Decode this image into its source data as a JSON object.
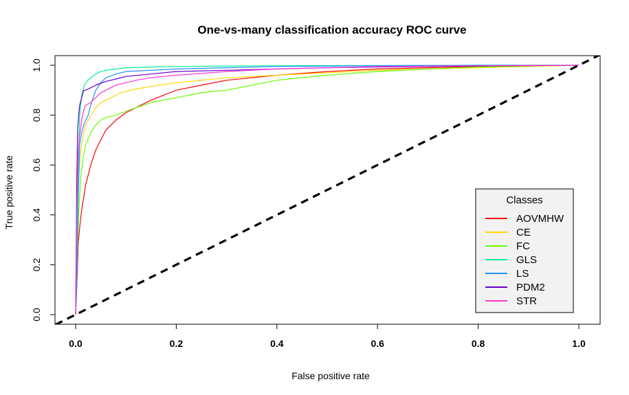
{
  "chart_data": {
    "type": "line",
    "title": "One-vs-many classification accuracy ROC curve",
    "xlabel": "False positive rate",
    "ylabel": "True positive rate",
    "xlim": [
      0,
      1
    ],
    "ylim": [
      0,
      1
    ],
    "x_ticks": [
      "0.0",
      "0.2",
      "0.4",
      "0.6",
      "0.8",
      "1.0"
    ],
    "y_ticks": [
      "0.0",
      "0.2",
      "0.4",
      "0.6",
      "0.8",
      "1.0"
    ],
    "legend": {
      "title": "Classes",
      "position": "bottom-right"
    },
    "diagonal": {
      "name": "random-classifier",
      "color": "#000000",
      "style": "dashed",
      "x": [
        0,
        1
      ],
      "y": [
        0,
        1
      ]
    },
    "series": [
      {
        "name": "AOVMHW",
        "color": "#ff0000",
        "x": [
          0,
          0.003,
          0.005,
          0.008,
          0.012,
          0.02,
          0.03,
          0.04,
          0.05,
          0.06,
          0.08,
          0.1,
          0.12,
          0.15,
          0.2,
          0.25,
          0.3,
          0.35,
          0.4,
          0.5,
          0.6,
          0.7,
          0.8,
          0.9,
          1.0
        ],
        "y": [
          0,
          0.15,
          0.28,
          0.35,
          0.42,
          0.52,
          0.6,
          0.66,
          0.7,
          0.74,
          0.78,
          0.81,
          0.83,
          0.86,
          0.9,
          0.92,
          0.94,
          0.95,
          0.96,
          0.975,
          0.985,
          0.99,
          0.995,
          0.998,
          1.0
        ]
      },
      {
        "name": "CE",
        "color": "#ffd700",
        "x": [
          0,
          0.003,
          0.006,
          0.01,
          0.015,
          0.02,
          0.03,
          0.04,
          0.05,
          0.07,
          0.09,
          0.12,
          0.15,
          0.2,
          0.25,
          0.3,
          0.4,
          0.5,
          0.6,
          0.8,
          1.0
        ],
        "y": [
          0,
          0.35,
          0.55,
          0.65,
          0.72,
          0.76,
          0.8,
          0.83,
          0.85,
          0.87,
          0.89,
          0.905,
          0.915,
          0.93,
          0.94,
          0.95,
          0.96,
          0.97,
          0.98,
          0.99,
          1.0
        ]
      },
      {
        "name": "FC",
        "color": "#66ff00",
        "x": [
          0,
          0.003,
          0.006,
          0.01,
          0.015,
          0.02,
          0.03,
          0.04,
          0.05,
          0.06,
          0.08,
          0.1,
          0.12,
          0.15,
          0.2,
          0.25,
          0.3,
          0.35,
          0.4,
          0.5,
          0.6,
          0.7,
          0.8,
          0.9,
          1.0
        ],
        "y": [
          0,
          0.2,
          0.4,
          0.55,
          0.63,
          0.68,
          0.73,
          0.76,
          0.78,
          0.79,
          0.8,
          0.815,
          0.83,
          0.85,
          0.87,
          0.89,
          0.9,
          0.92,
          0.94,
          0.96,
          0.975,
          0.985,
          0.993,
          0.998,
          1.0
        ]
      },
      {
        "name": "GLS",
        "color": "#00ee99",
        "x": [
          0,
          0.002,
          0.005,
          0.008,
          0.012,
          0.016,
          0.02,
          0.03,
          0.04,
          0.05,
          0.06,
          0.08,
          0.1,
          0.15,
          0.2,
          0.3,
          0.4,
          0.6,
          0.8,
          1.0
        ],
        "y": [
          0,
          0.3,
          0.6,
          0.8,
          0.88,
          0.91,
          0.93,
          0.95,
          0.965,
          0.975,
          0.98,
          0.985,
          0.99,
          0.993,
          0.995,
          0.997,
          0.998,
          0.999,
          1.0,
          1.0
        ]
      },
      {
        "name": "LS",
        "color": "#1e90ff",
        "x": [
          0,
          0.002,
          0.005,
          0.008,
          0.012,
          0.016,
          0.02,
          0.025,
          0.03,
          0.035,
          0.04,
          0.05,
          0.06,
          0.08,
          0.1,
          0.15,
          0.2,
          0.3,
          0.4,
          0.6,
          0.8,
          1.0
        ],
        "y": [
          0,
          0.1,
          0.45,
          0.68,
          0.73,
          0.76,
          0.78,
          0.8,
          0.84,
          0.87,
          0.9,
          0.93,
          0.95,
          0.965,
          0.975,
          0.98,
          0.985,
          0.99,
          0.995,
          0.998,
          1.0,
          1.0
        ]
      },
      {
        "name": "PDM2",
        "color": "#6600cc",
        "x": [
          0,
          0.002,
          0.004,
          0.006,
          0.008,
          0.012,
          0.016,
          0.02,
          0.03,
          0.04,
          0.06,
          0.08,
          0.1,
          0.15,
          0.2,
          0.3,
          0.4,
          0.5,
          0.6,
          0.8,
          1.0
        ],
        "y": [
          0,
          0.5,
          0.74,
          0.8,
          0.84,
          0.87,
          0.9,
          0.9,
          0.91,
          0.92,
          0.935,
          0.945,
          0.955,
          0.965,
          0.975,
          0.98,
          0.985,
          0.99,
          0.993,
          0.997,
          1.0
        ]
      },
      {
        "name": "STR",
        "color": "#ff33cc",
        "x": [
          0,
          0.002,
          0.005,
          0.008,
          0.012,
          0.016,
          0.02,
          0.03,
          0.04,
          0.05,
          0.06,
          0.08,
          0.1,
          0.12,
          0.15,
          0.2,
          0.3,
          0.4,
          0.5,
          0.6,
          0.8,
          1.0
        ],
        "y": [
          0,
          0.4,
          0.65,
          0.72,
          0.78,
          0.82,
          0.84,
          0.85,
          0.87,
          0.89,
          0.9,
          0.92,
          0.93,
          0.94,
          0.95,
          0.96,
          0.975,
          0.985,
          0.99,
          0.995,
          0.998,
          1.0
        ]
      }
    ]
  }
}
